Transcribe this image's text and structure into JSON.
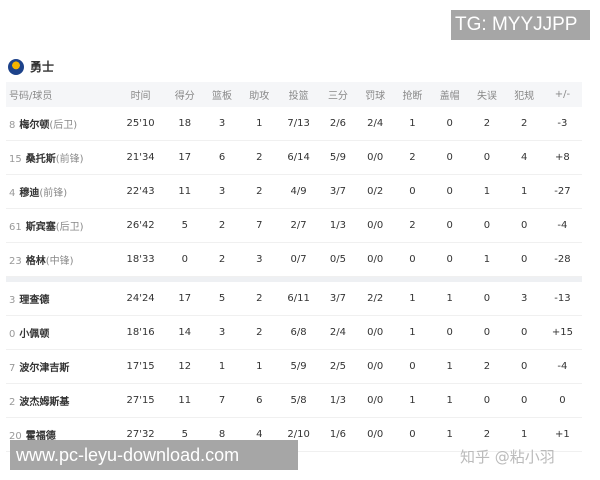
{
  "watermarks": {
    "tg": "TG: MYYJJPP",
    "site": "www.pc-leyu-download.com",
    "zhihu": "知乎 @粘小羽"
  },
  "team": {
    "name": "勇士",
    "logo_icon": "warriors-logo"
  },
  "columns": [
    "号码/球员",
    "时间",
    "得分",
    "篮板",
    "助攻",
    "投篮",
    "三分",
    "罚球",
    "抢断",
    "盖帽",
    "失误",
    "犯规",
    "+/-"
  ],
  "starters": [
    {
      "num": "8",
      "name": "梅尔顿",
      "pos": "(后卫)",
      "stats": [
        "25'10",
        "18",
        "3",
        "1",
        "7/13",
        "2/6",
        "2/4",
        "1",
        "0",
        "2",
        "2",
        "-3"
      ]
    },
    {
      "num": "15",
      "name": "桑托斯",
      "pos": "(前锋)",
      "stats": [
        "21'34",
        "17",
        "6",
        "2",
        "6/14",
        "5/9",
        "0/0",
        "2",
        "0",
        "0",
        "4",
        "+8"
      ]
    },
    {
      "num": "4",
      "name": "穆迪",
      "pos": "(前锋)",
      "stats": [
        "22'43",
        "11",
        "3",
        "2",
        "4/9",
        "3/7",
        "0/2",
        "0",
        "0",
        "1",
        "1",
        "-27"
      ]
    },
    {
      "num": "61",
      "name": "斯宾塞",
      "pos": "(后卫)",
      "stats": [
        "26'42",
        "5",
        "2",
        "7",
        "2/7",
        "1/3",
        "0/0",
        "2",
        "0",
        "0",
        "0",
        "-4"
      ]
    },
    {
      "num": "23",
      "name": "格林",
      "pos": "(中锋)",
      "stats": [
        "18'33",
        "0",
        "2",
        "3",
        "0/7",
        "0/5",
        "0/0",
        "0",
        "0",
        "1",
        "0",
        "-28"
      ]
    }
  ],
  "bench": [
    {
      "num": "3",
      "name": "理查德",
      "pos": "",
      "stats": [
        "24'24",
        "17",
        "5",
        "2",
        "6/11",
        "3/7",
        "2/2",
        "1",
        "1",
        "0",
        "3",
        "-13"
      ]
    },
    {
      "num": "0",
      "name": "小佩顿",
      "pos": "",
      "stats": [
        "18'16",
        "14",
        "3",
        "2",
        "6/8",
        "2/4",
        "0/0",
        "1",
        "0",
        "0",
        "0",
        "+15"
      ]
    },
    {
      "num": "7",
      "name": "波尔津吉斯",
      "pos": "",
      "stats": [
        "17'15",
        "12",
        "1",
        "1",
        "5/9",
        "2/5",
        "0/0",
        "0",
        "1",
        "2",
        "0",
        "-4"
      ]
    },
    {
      "num": "2",
      "name": "波杰姆斯基",
      "pos": "",
      "stats": [
        "27'15",
        "11",
        "7",
        "6",
        "5/8",
        "1/3",
        "0/0",
        "1",
        "1",
        "0",
        "0",
        "0"
      ]
    },
    {
      "num": "20",
      "name": "霍福德",
      "pos": "",
      "stats": [
        "27'32",
        "5",
        "8",
        "4",
        "2/10",
        "1/6",
        "0/0",
        "0",
        "1",
        "2",
        "1",
        "+1"
      ]
    }
  ]
}
